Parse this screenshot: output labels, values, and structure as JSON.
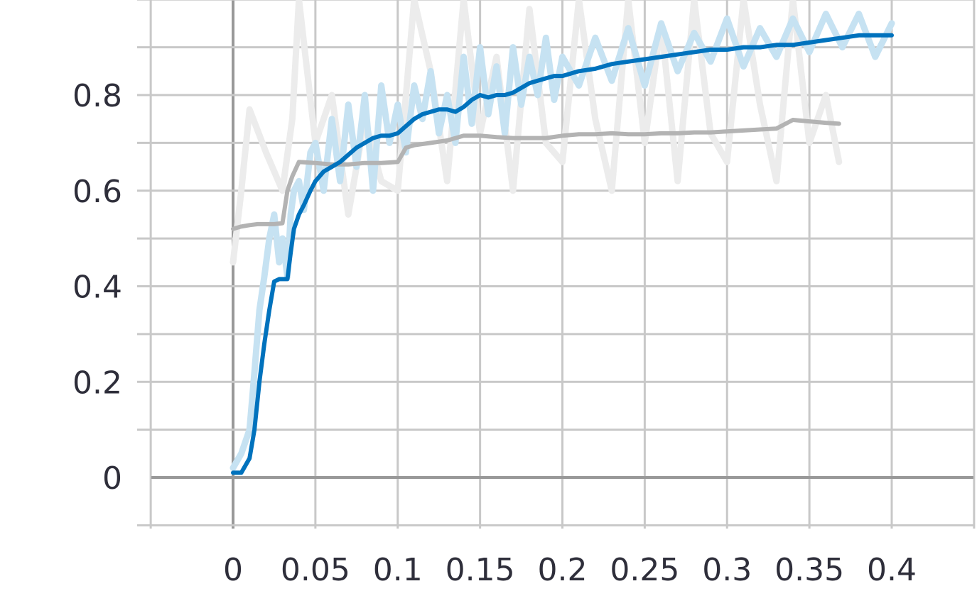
{
  "chart_data": {
    "type": "line",
    "title": "",
    "xlabel": "",
    "ylabel": "",
    "xlim": [
      -0.05,
      0.45
    ],
    "ylim": [
      -0.1,
      1.0
    ],
    "x_ticks": [
      0,
      0.05,
      0.1,
      0.15,
      0.2,
      0.25,
      0.3,
      0.35,
      0.4
    ],
    "x_tick_labels": [
      "0",
      "0.05",
      "0.1",
      "0.15",
      "0.2",
      "0.25",
      "0.3",
      "0.35",
      "0.4"
    ],
    "y_ticks": [
      0,
      0.2,
      0.4,
      0.6,
      0.8
    ],
    "y_tick_labels": [
      "0",
      "0.2",
      "0.4",
      "0.6",
      "0.8"
    ],
    "grid": true,
    "legend": "none",
    "colors": {
      "blue": "#0072bd",
      "blue_raw": "#c6e2f2",
      "gray": "#b3b3b3",
      "gray_raw": "#ececec",
      "grid": "#c8c8c8",
      "axis": "#999999"
    },
    "series": [
      {
        "style": "smoothed",
        "color_key": "blue",
        "x": [
          0.0,
          0.005,
          0.01,
          0.013,
          0.016,
          0.019,
          0.022,
          0.025,
          0.028,
          0.03,
          0.033,
          0.035,
          0.037,
          0.04,
          0.043,
          0.047,
          0.05,
          0.055,
          0.06,
          0.065,
          0.07,
          0.075,
          0.08,
          0.085,
          0.09,
          0.095,
          0.1,
          0.105,
          0.11,
          0.115,
          0.12,
          0.125,
          0.13,
          0.135,
          0.14,
          0.145,
          0.15,
          0.155,
          0.16,
          0.165,
          0.17,
          0.175,
          0.18,
          0.185,
          0.19,
          0.195,
          0.2,
          0.21,
          0.22,
          0.23,
          0.24,
          0.25,
          0.26,
          0.27,
          0.28,
          0.29,
          0.3,
          0.31,
          0.32,
          0.33,
          0.34,
          0.35,
          0.36,
          0.37,
          0.38,
          0.39,
          0.4
        ],
        "y": [
          0.01,
          0.01,
          0.04,
          0.1,
          0.2,
          0.28,
          0.35,
          0.41,
          0.415,
          0.415,
          0.415,
          0.47,
          0.52,
          0.55,
          0.57,
          0.6,
          0.62,
          0.64,
          0.65,
          0.66,
          0.675,
          0.69,
          0.7,
          0.71,
          0.715,
          0.715,
          0.72,
          0.735,
          0.75,
          0.76,
          0.765,
          0.77,
          0.77,
          0.765,
          0.775,
          0.79,
          0.8,
          0.795,
          0.8,
          0.8,
          0.805,
          0.815,
          0.825,
          0.83,
          0.835,
          0.84,
          0.84,
          0.85,
          0.855,
          0.865,
          0.87,
          0.875,
          0.88,
          0.885,
          0.89,
          0.895,
          0.895,
          0.9,
          0.9,
          0.905,
          0.905,
          0.91,
          0.915,
          0.92,
          0.925,
          0.925,
          0.925
        ]
      },
      {
        "style": "raw",
        "color_key": "blue_raw",
        "x": [
          0.0,
          0.005,
          0.01,
          0.013,
          0.016,
          0.019,
          0.022,
          0.025,
          0.028,
          0.03,
          0.033,
          0.035,
          0.037,
          0.04,
          0.043,
          0.047,
          0.05,
          0.055,
          0.06,
          0.065,
          0.07,
          0.075,
          0.08,
          0.085,
          0.09,
          0.095,
          0.1,
          0.105,
          0.11,
          0.115,
          0.12,
          0.125,
          0.13,
          0.135,
          0.14,
          0.145,
          0.15,
          0.155,
          0.16,
          0.165,
          0.17,
          0.175,
          0.18,
          0.185,
          0.19,
          0.195,
          0.2,
          0.21,
          0.22,
          0.23,
          0.24,
          0.25,
          0.26,
          0.27,
          0.28,
          0.29,
          0.3,
          0.31,
          0.32,
          0.33,
          0.34,
          0.35,
          0.36,
          0.37,
          0.38,
          0.39,
          0.4
        ],
        "y": [
          0.02,
          0.05,
          0.1,
          0.22,
          0.35,
          0.42,
          0.5,
          0.55,
          0.45,
          0.5,
          0.42,
          0.55,
          0.6,
          0.62,
          0.56,
          0.68,
          0.7,
          0.6,
          0.75,
          0.62,
          0.78,
          0.65,
          0.8,
          0.6,
          0.82,
          0.7,
          0.78,
          0.68,
          0.82,
          0.75,
          0.85,
          0.72,
          0.8,
          0.7,
          0.88,
          0.74,
          0.9,
          0.76,
          0.86,
          0.72,
          0.9,
          0.78,
          0.88,
          0.8,
          0.92,
          0.79,
          0.88,
          0.82,
          0.92,
          0.83,
          0.94,
          0.82,
          0.95,
          0.85,
          0.93,
          0.87,
          0.96,
          0.86,
          0.94,
          0.88,
          0.96,
          0.89,
          0.97,
          0.9,
          0.97,
          0.88,
          0.95
        ]
      },
      {
        "style": "smoothed",
        "color_key": "gray",
        "x": [
          0.0,
          0.005,
          0.01,
          0.015,
          0.02,
          0.025,
          0.03,
          0.033,
          0.036,
          0.04,
          0.05,
          0.06,
          0.07,
          0.08,
          0.09,
          0.1,
          0.105,
          0.11,
          0.12,
          0.13,
          0.14,
          0.15,
          0.16,
          0.17,
          0.18,
          0.19,
          0.2,
          0.21,
          0.22,
          0.23,
          0.24,
          0.25,
          0.26,
          0.27,
          0.28,
          0.29,
          0.3,
          0.31,
          0.32,
          0.33,
          0.34,
          0.35,
          0.36,
          0.368
        ],
        "y": [
          0.52,
          0.525,
          0.528,
          0.53,
          0.53,
          0.53,
          0.532,
          0.6,
          0.63,
          0.66,
          0.658,
          0.655,
          0.655,
          0.658,
          0.658,
          0.66,
          0.69,
          0.695,
          0.7,
          0.705,
          0.715,
          0.715,
          0.712,
          0.71,
          0.71,
          0.71,
          0.715,
          0.718,
          0.718,
          0.72,
          0.718,
          0.718,
          0.72,
          0.72,
          0.722,
          0.722,
          0.724,
          0.726,
          0.728,
          0.73,
          0.748,
          0.745,
          0.742,
          0.74
        ]
      },
      {
        "style": "raw",
        "color_key": "gray_raw",
        "x": [
          0.0,
          0.005,
          0.01,
          0.02,
          0.03,
          0.036,
          0.04,
          0.05,
          0.06,
          0.07,
          0.08,
          0.09,
          0.1,
          0.11,
          0.12,
          0.13,
          0.14,
          0.15,
          0.16,
          0.17,
          0.18,
          0.19,
          0.2,
          0.21,
          0.22,
          0.23,
          0.24,
          0.25,
          0.26,
          0.27,
          0.28,
          0.29,
          0.3,
          0.31,
          0.32,
          0.33,
          0.34,
          0.35,
          0.36,
          0.368
        ],
        "y": [
          0.45,
          0.6,
          0.77,
          0.68,
          0.6,
          0.75,
          1.0,
          0.7,
          0.8,
          0.55,
          0.75,
          0.62,
          0.6,
          1.0,
          0.85,
          0.62,
          1.0,
          0.72,
          0.88,
          0.6,
          0.98,
          0.7,
          0.66,
          1.0,
          0.75,
          0.6,
          1.0,
          0.7,
          0.95,
          0.62,
          1.0,
          0.72,
          0.66,
          1.0,
          0.78,
          0.62,
          1.0,
          0.7,
          0.8,
          0.66
        ]
      }
    ]
  }
}
